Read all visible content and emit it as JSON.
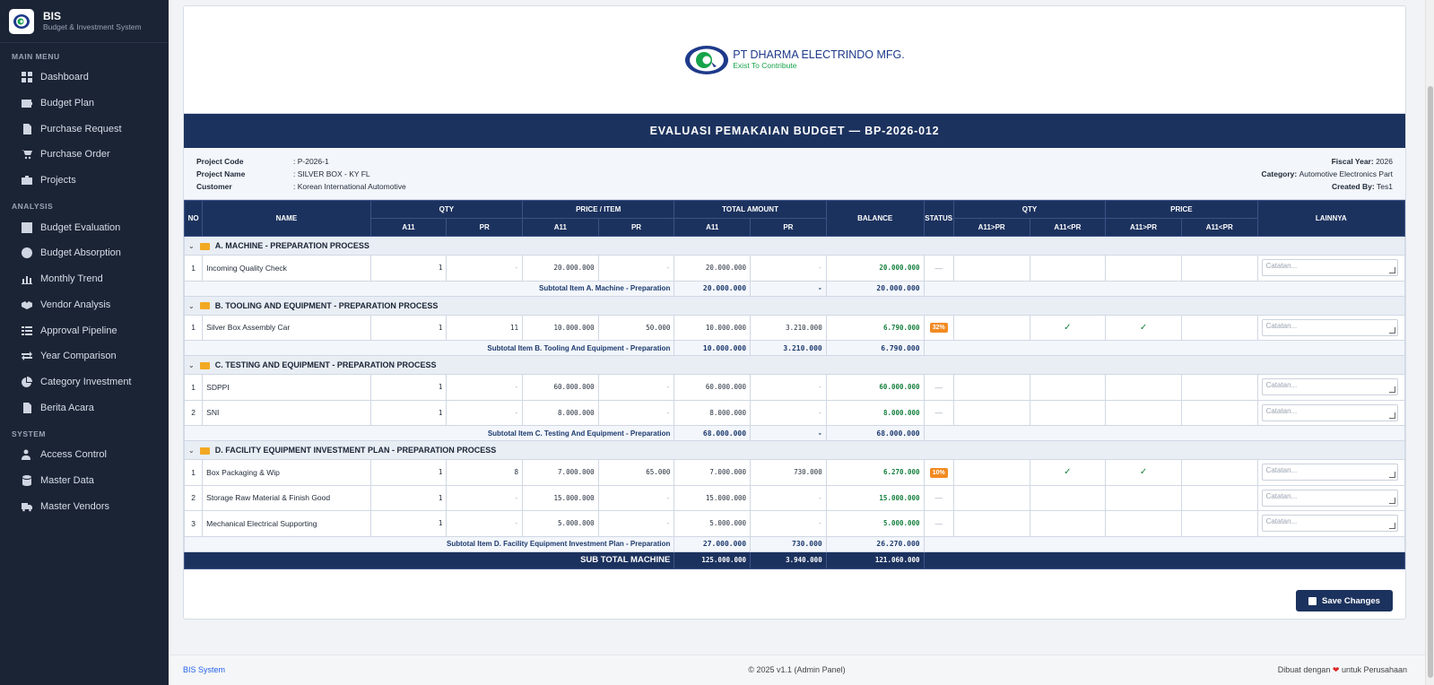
{
  "app": {
    "title": "BIS",
    "subtitle": "Budget & Investment System"
  },
  "sidebar": {
    "sections": [
      {
        "label": "MAIN MENU",
        "items": [
          "Dashboard",
          "Budget Plan",
          "Purchase Request",
          "Purchase Order",
          "Projects"
        ]
      },
      {
        "label": "ANALYSIS",
        "items": [
          "Budget Evaluation",
          "Budget Absorption",
          "Monthly Trend",
          "Vendor Analysis",
          "Approval Pipeline",
          "Year Comparison",
          "Category Investment",
          "Berita Acara"
        ]
      },
      {
        "label": "SYSTEM",
        "items": [
          "Access Control",
          "Master Data",
          "Master Vendors"
        ]
      }
    ]
  },
  "company": {
    "name": "PT DHARMA ELECTRINDO MFG.",
    "tagline": "Exist To Contribute"
  },
  "report": {
    "title": "EVALUASI PEMAKAIAN BUDGET — BP-2026-012",
    "project_code_label": "Project Code",
    "project_code": ": P-2026-1",
    "project_name_label": "Project Name",
    "project_name": ": SILVER BOX - KY FL",
    "customer_label": "Customer",
    "customer": ": Korean International Automotive",
    "fiscal_year_label": "Fiscal Year:",
    "fiscal_year": "2026",
    "category_label": "Category:",
    "category": "Automotive Electronics Part",
    "created_by_label": "Created By:",
    "created_by": "Tes1"
  },
  "table": {
    "headers": {
      "no": "NO",
      "name": "NAME",
      "qty": "QTY",
      "price_item": "PRICE / ITEM",
      "total_amount": "TOTAL AMOUNT",
      "balance": "BALANCE",
      "status": "STATUS",
      "qty2": "QTY",
      "price2": "PRICE",
      "lainnya": "LAINNYA",
      "a11": "A11",
      "pr": "PR",
      "a11_gt_pr": "A11>PR",
      "a11_lt_pr": "A11<PR"
    },
    "groups": [
      {
        "title": "A. MACHINE - PREPARATION PROCESS",
        "rows": [
          {
            "no": "1",
            "name": "Incoming Quality Check",
            "qty_a11": "1",
            "qty_pr": "-",
            "price_a11": "20.000.000",
            "price_pr": "-",
            "total_a11": "20.000.000",
            "total_pr": "-",
            "balance": "20.000.000",
            "status": "—",
            "placeholder": "Catatan..."
          }
        ],
        "subtotal": {
          "label": "Subtotal Item A. Machine - Preparation",
          "a11": "20.000.000",
          "pr": "-",
          "balance": "20.000.000"
        }
      },
      {
        "title": "B. TOOLING AND EQUIPMENT - PREPARATION PROCESS",
        "rows": [
          {
            "no": "1",
            "name": "Silver Box Assembly Car",
            "qty_a11": "1",
            "qty_pr": "11",
            "price_a11": "10.000.000",
            "price_pr": "50.000",
            "total_a11": "10.000.000",
            "total_pr": "3.210.000",
            "balance": "6.790.000",
            "status": "32%",
            "qty_lt": "✓",
            "price_gt": "✓",
            "placeholder": "Catatan..."
          }
        ],
        "subtotal": {
          "label": "Subtotal Item B. Tooling And Equipment - Preparation",
          "a11": "10.000.000",
          "pr": "3.210.000",
          "balance": "6.790.000"
        }
      },
      {
        "title": "C. TESTING AND EQUIPMENT - PREPARATION PROCESS",
        "rows": [
          {
            "no": "1",
            "name": "SDPPI",
            "qty_a11": "1",
            "qty_pr": "-",
            "price_a11": "60.000.000",
            "price_pr": "-",
            "total_a11": "60.000.000",
            "total_pr": "-",
            "balance": "60.000.000",
            "status": "—",
            "placeholder": "Catatan..."
          },
          {
            "no": "2",
            "name": "SNI",
            "qty_a11": "1",
            "qty_pr": "-",
            "price_a11": "8.000.000",
            "price_pr": "-",
            "total_a11": "8.000.000",
            "total_pr": "-",
            "balance": "8.000.000",
            "status": "—",
            "placeholder": "Catatan..."
          }
        ],
        "subtotal": {
          "label": "Subtotal Item C. Testing And Equipment - Preparation",
          "a11": "68.000.000",
          "pr": "-",
          "balance": "68.000.000"
        }
      },
      {
        "title": "D. FACILITY EQUIPMENT INVESTMENT PLAN - PREPARATION PROCESS",
        "rows": [
          {
            "no": "1",
            "name": "Box Packaging & Wip",
            "qty_a11": "1",
            "qty_pr": "8",
            "price_a11": "7.000.000",
            "price_pr": "65.000",
            "total_a11": "7.000.000",
            "total_pr": "730.000",
            "balance": "6.270.000",
            "status": "10%",
            "qty_lt": "✓",
            "price_gt": "✓",
            "placeholder": "Catatan..."
          },
          {
            "no": "2",
            "name": "Storage Raw Material & Finish Good",
            "qty_a11": "1",
            "qty_pr": "-",
            "price_a11": "15.000.000",
            "price_pr": "-",
            "total_a11": "15.000.000",
            "total_pr": "-",
            "balance": "15.000.000",
            "status": "—",
            "placeholder": "Catatan..."
          },
          {
            "no": "3",
            "name": "Mechanical Electrical Supporting",
            "qty_a11": "1",
            "qty_pr": "-",
            "price_a11": "5.000.000",
            "price_pr": "-",
            "total_a11": "5.000.000",
            "total_pr": "-",
            "balance": "5.000.000",
            "status": "—",
            "placeholder": "Catatan..."
          }
        ],
        "subtotal": {
          "label": "Subtotal Item D. Facility Equipment Investment Plan - Preparation",
          "a11": "27.000.000",
          "pr": "730.000",
          "balance": "26.270.000"
        }
      }
    ],
    "grand_total": {
      "label": "SUB TOTAL MACHINE",
      "a11": "125.000.000",
      "pr": "3.940.000",
      "balance": "121.060.000"
    }
  },
  "actions": {
    "save_label": "Save Changes"
  },
  "footer": {
    "left": "BIS System",
    "center": "© 2025 v1.1 (Admin Panel)",
    "right_prefix": "Dibuat dengan",
    "right_suffix": "untuk Perusahaan"
  },
  "colors": {
    "sidebar_bg": "#1b2435",
    "header_navy": "#1c325e",
    "balance_green": "#15803d",
    "badge_orange": "#f28b22"
  }
}
